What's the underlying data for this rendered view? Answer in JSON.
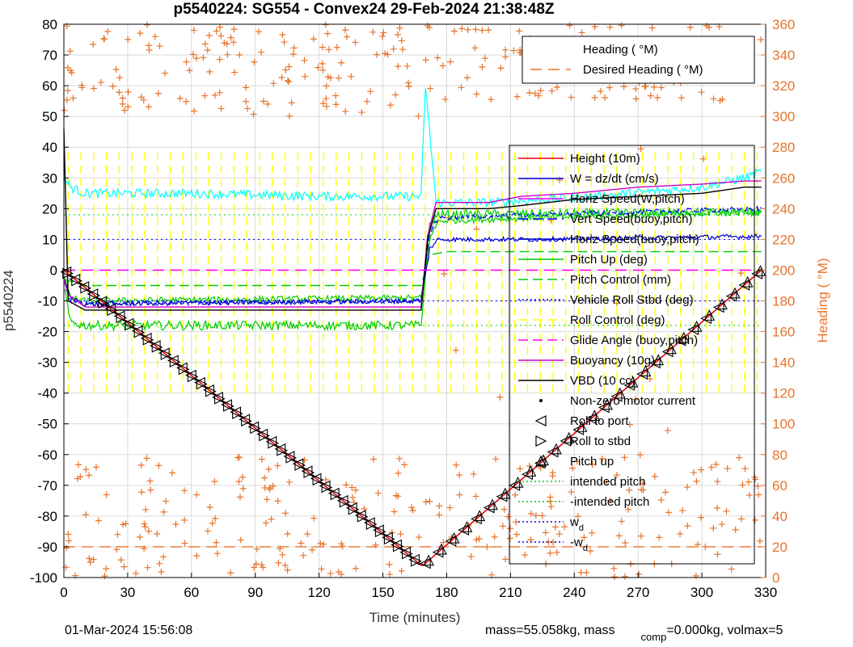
{
  "chart_data": {
    "type": "line",
    "title": "p5540224: SG554 - Convex24 29-Feb-2024 21:38:48Z",
    "xlabel": "Time (minutes)",
    "ylabel": "p5540224",
    "y2label": "Heading (  °M)",
    "xlim": [
      0,
      330
    ],
    "ylim": [
      -100,
      80
    ],
    "y2lim": [
      0,
      360
    ],
    "xticks": [
      "0",
      "30",
      "60",
      "90",
      "120",
      "150",
      "180",
      "210",
      "240",
      "270",
      "300",
      "330"
    ],
    "yticks": [
      "80",
      "70",
      "60",
      "50",
      "40",
      "30",
      "20",
      "10",
      "0",
      "-10",
      "-20",
      "-30",
      "-40",
      "-50",
      "-60",
      "-70",
      "-80",
      "-90",
      "-100"
    ],
    "y2ticks": [
      "360",
      "340",
      "320",
      "300",
      "280",
      "260",
      "240",
      "220",
      "200",
      "180",
      "160",
      "140",
      "120",
      "100",
      "80",
      "60",
      "40",
      "20",
      "0"
    ],
    "grid": true,
    "colors": {
      "axis": "#000000",
      "grid": "#d9d9d9",
      "heading": "#e8732a",
      "height": "#e8000b",
      "w": "#0000cc",
      "horiz_speed": "#ff00ff",
      "vert_speed": "#0000ff",
      "horiz_speed_buoy": "#0000cc",
      "pitch_up": "#00cc00",
      "pitch_control": "#00cc00",
      "roll": "#00ffff",
      "roll_control": "#ffff00",
      "glide_angle": "#ff00ff",
      "buoyancy": "#cc00cc",
      "vbd": "#000000",
      "intended_pitch": "#00cc00",
      "wd": "#0000ff"
    },
    "legend_heading": {
      "placement": "top-right",
      "entries": [
        "Heading (  °M)",
        "Desired Heading (    °M)"
      ]
    },
    "legend_main": {
      "placement": "right",
      "entries": [
        "Height (10m)",
        "W = dz/dt (cm/s)",
        "Horiz Speed(W,pitch)",
        "Vert Speed(buoy,pitch)",
        "Horiz Speed(buoy,pitch)",
        "Pitch Up (deg)",
        "Pitch Control (mm)",
        "Vehicle Roll Stbd (deg)",
        "Roll Control (deg)",
        "Glide Angle (buoy,pitch)",
        "Buoyancy (10g)",
        "VBD (10 cc)",
        "Non-zero motor current",
        "Roll to port",
        "Roll to stbd",
        "Pitch up",
        "intended pitch",
        "-intended pitch",
        "w",
        "-w"
      ],
      "subscripts": [
        "d",
        "d"
      ]
    },
    "series": [
      {
        "name": "Height (10m)",
        "x": [
          0,
          168,
          169,
          328
        ],
        "y": [
          0,
          -96,
          -96,
          0
        ]
      },
      {
        "name": "VBD (10 cc)",
        "x": [
          0,
          2,
          10,
          168,
          171,
          175,
          200,
          215,
          240,
          270,
          300,
          320,
          328
        ],
        "y": [
          46,
          -10,
          -13,
          -13,
          10,
          20,
          20,
          21,
          23,
          24,
          25,
          27,
          27
        ]
      },
      {
        "name": "Buoyancy (10g)",
        "x": [
          0,
          2,
          10,
          168,
          171,
          175,
          200,
          215,
          240,
          270,
          300,
          320,
          328
        ],
        "y": [
          -3,
          -8,
          -12,
          -12,
          11,
          22,
          22,
          24,
          25,
          27,
          28,
          29,
          29
        ]
      },
      {
        "name": "Horiz Speed(buoy,pitch)",
        "x": [
          0,
          3,
          10,
          168,
          172,
          176,
          220,
          328
        ],
        "y": [
          -3,
          -9,
          -11,
          -10,
          7,
          10,
          10,
          11
        ]
      },
      {
        "name": "Vert Speed(buoy,pitch)",
        "x": [
          0,
          3,
          10,
          168,
          172,
          176,
          220,
          328
        ],
        "y": [
          -3,
          -10,
          -11,
          -10,
          12,
          17,
          18,
          20
        ]
      },
      {
        "name": "Horiz Speed(W,pitch)",
        "x": [
          0,
          3,
          10,
          168,
          172,
          176,
          220,
          328
        ],
        "y": [
          -2,
          -9,
          -10,
          -9,
          10,
          16,
          17,
          19
        ]
      },
      {
        "name": "Pitch Up (deg)",
        "x": [
          0,
          3,
          10,
          168,
          172,
          176,
          328
        ],
        "y": [
          -5,
          -17,
          -18,
          -18,
          15,
          18,
          19
        ]
      },
      {
        "name": "Glide Angle (buoy,pitch)",
        "x": [
          0,
          328
        ],
        "y": [
          0,
          0
        ]
      },
      {
        "name": "Pitch Control (mm)",
        "x": [
          0,
          10,
          168,
          172,
          180,
          328
        ],
        "y": [
          -3,
          -5,
          -5,
          5,
          6,
          6
        ]
      },
      {
        "name": "Vehicle Roll Stbd (deg)",
        "x": [
          0,
          3,
          10,
          60,
          120,
          168,
          170,
          175,
          200,
          250,
          300,
          320,
          328
        ],
        "y": [
          30,
          27,
          25,
          25,
          24,
          24,
          60,
          22,
          22,
          24,
          27,
          30,
          32
        ]
      },
      {
        "name": "Roll Control (deg)",
        "pattern": "square-wave",
        "x_range": [
          0,
          328
        ],
        "y_range": [
          -40,
          40
        ]
      },
      {
        "name": "intended pitch",
        "x": [
          0,
          328
        ],
        "y": [
          18,
          18
        ]
      },
      {
        "name": "-intended pitch",
        "x": [
          0,
          328
        ],
        "y": [
          -18,
          -18
        ]
      },
      {
        "name": "w",
        "x": [
          0,
          328
        ],
        "y": [
          10,
          10
        ]
      },
      {
        "name": "-w",
        "x": [
          0,
          328
        ],
        "y": [
          -10,
          -10
        ]
      },
      {
        "name": "Desired Heading (    °M)",
        "axis": "right",
        "x": [
          0,
          328
        ],
        "y": [
          20,
          20
        ]
      },
      {
        "name": "Heading (  °M)",
        "axis": "right",
        "marker": "+",
        "note": "scattered heading clusters near 0-80 and 300-360 degrees"
      }
    ]
  },
  "footer": {
    "date": "01-Mar-2024 15:56:08",
    "mass_text": "mass=55.058kg, mass",
    "mass_sub": "comp",
    "mass_rest": "=0.000kg, volmax=5"
  }
}
